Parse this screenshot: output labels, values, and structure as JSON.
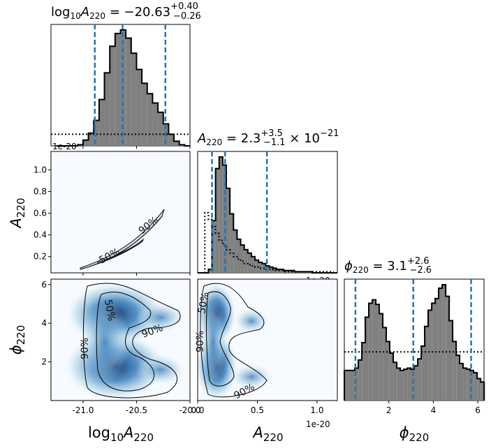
{
  "chart_data": [
    {
      "type": "histogram",
      "panel": "top-left",
      "title": "log10A220 = -20.63 (+0.40, -0.26)",
      "bins": [
        {
          "x": -21.25,
          "y": 0.0
        },
        {
          "x": -21.2,
          "y": 0.0
        },
        {
          "x": -21.15,
          "y": 0.0
        },
        {
          "x": -21.1,
          "y": 0.0
        },
        {
          "x": -21.05,
          "y": 0.01
        },
        {
          "x": -21.0,
          "y": 0.05
        },
        {
          "x": -20.95,
          "y": 0.11
        },
        {
          "x": -20.9,
          "y": 0.22
        },
        {
          "x": -20.85,
          "y": 0.4
        },
        {
          "x": -20.8,
          "y": 0.63
        },
        {
          "x": -20.75,
          "y": 0.86
        },
        {
          "x": -20.7,
          "y": 0.97
        },
        {
          "x": -20.65,
          "y": 1.0
        },
        {
          "x": -20.6,
          "y": 0.93
        },
        {
          "x": -20.55,
          "y": 0.8
        },
        {
          "x": -20.5,
          "y": 0.66
        },
        {
          "x": -20.45,
          "y": 0.54
        },
        {
          "x": -20.4,
          "y": 0.45
        },
        {
          "x": -20.35,
          "y": 0.37
        },
        {
          "x": -20.3,
          "y": 0.29
        },
        {
          "x": -20.25,
          "y": 0.19
        },
        {
          "x": -20.2,
          "y": 0.1
        },
        {
          "x": -20.15,
          "y": 0.04
        },
        {
          "x": -20.1,
          "y": 0.01
        },
        {
          "x": -20.05,
          "y": 0.0
        }
      ],
      "quantiles": [
        -20.89,
        -20.63,
        -20.23
      ],
      "prior_level": 0.1,
      "xlim": [
        -21.3,
        -20.0
      ],
      "offset_label": "1e-20"
    },
    {
      "type": "histogram",
      "panel": "middle",
      "title": "A220 = 2.3 (+3.5, -1.1) x 10^-21",
      "bins": [
        {
          "x": 0.0,
          "y": 0.0
        },
        {
          "x": 0.03,
          "y": 0.0
        },
        {
          "x": 0.06,
          "y": 0.0
        },
        {
          "x": 0.09,
          "y": 0.03
        },
        {
          "x": 0.12,
          "y": 0.45
        },
        {
          "x": 0.15,
          "y": 0.9
        },
        {
          "x": 0.18,
          "y": 1.0
        },
        {
          "x": 0.21,
          "y": 0.93
        },
        {
          "x": 0.24,
          "y": 0.73
        },
        {
          "x": 0.27,
          "y": 0.51
        },
        {
          "x": 0.3,
          "y": 0.37
        },
        {
          "x": 0.33,
          "y": 0.29
        },
        {
          "x": 0.36,
          "y": 0.24
        },
        {
          "x": 0.39,
          "y": 0.2
        },
        {
          "x": 0.42,
          "y": 0.17
        },
        {
          "x": 0.45,
          "y": 0.14
        },
        {
          "x": 0.48,
          "y": 0.11
        },
        {
          "x": 0.51,
          "y": 0.09
        },
        {
          "x": 0.54,
          "y": 0.08
        },
        {
          "x": 0.57,
          "y": 0.06
        },
        {
          "x": 0.6,
          "y": 0.05
        },
        {
          "x": 0.63,
          "y": 0.04
        },
        {
          "x": 0.66,
          "y": 0.03
        },
        {
          "x": 0.69,
          "y": 0.03
        },
        {
          "x": 0.72,
          "y": 0.02
        },
        {
          "x": 0.75,
          "y": 0.02
        },
        {
          "x": 0.78,
          "y": 0.02
        },
        {
          "x": 0.81,
          "y": 0.01
        },
        {
          "x": 0.84,
          "y": 0.01
        },
        {
          "x": 0.87,
          "y": 0.01
        },
        {
          "x": 0.9,
          "y": 0.01
        },
        {
          "x": 0.93,
          "y": 0.01
        },
        {
          "x": 0.96,
          "y": 0.0
        },
        {
          "x": 0.99,
          "y": 0.0
        },
        {
          "x": 1.02,
          "y": 0.0
        },
        {
          "x": 1.05,
          "y": 0.0
        },
        {
          "x": 1.08,
          "y": 0.0
        },
        {
          "x": 1.11,
          "y": 0.0
        },
        {
          "x": 1.14,
          "y": 0.0
        }
      ],
      "prior": [
        {
          "x": 0.0,
          "y": 0.0
        },
        {
          "x": 0.03,
          "y": 0.0
        },
        {
          "x": 0.06,
          "y": 0.52
        },
        {
          "x": 0.09,
          "y": 0.46
        },
        {
          "x": 0.12,
          "y": 0.4
        },
        {
          "x": 0.15,
          "y": 0.34
        },
        {
          "x": 0.18,
          "y": 0.28
        },
        {
          "x": 0.21,
          "y": 0.24
        },
        {
          "x": 0.24,
          "y": 0.2
        },
        {
          "x": 0.27,
          "y": 0.17
        },
        {
          "x": 0.3,
          "y": 0.14
        },
        {
          "x": 0.33,
          "y": 0.12
        },
        {
          "x": 0.36,
          "y": 0.1
        },
        {
          "x": 0.39,
          "y": 0.08
        },
        {
          "x": 0.42,
          "y": 0.07
        },
        {
          "x": 0.45,
          "y": 0.06
        },
        {
          "x": 0.48,
          "y": 0.05
        },
        {
          "x": 0.51,
          "y": 0.04
        },
        {
          "x": 0.54,
          "y": 0.04
        },
        {
          "x": 0.57,
          "y": 0.03
        },
        {
          "x": 0.6,
          "y": 0.03
        },
        {
          "x": 0.63,
          "y": 0.02
        },
        {
          "x": 0.66,
          "y": 0.02
        },
        {
          "x": 0.69,
          "y": 0.02
        },
        {
          "x": 0.72,
          "y": 0.01
        },
        {
          "x": 0.75,
          "y": 0.01
        },
        {
          "x": 0.78,
          "y": 0.01
        },
        {
          "x": 0.81,
          "y": 0.01
        },
        {
          "x": 0.84,
          "y": 0.01
        },
        {
          "x": 0.87,
          "y": 0.01
        },
        {
          "x": 0.9,
          "y": 0.01
        },
        {
          "x": 0.93,
          "y": 0.01
        },
        {
          "x": 0.96,
          "y": 0.01
        },
        {
          "x": 0.99,
          "y": 0.01
        },
        {
          "x": 1.02,
          "y": 0.01
        },
        {
          "x": 1.05,
          "y": 0.01
        },
        {
          "x": 1.08,
          "y": 0.01
        },
        {
          "x": 1.11,
          "y": 0.01
        },
        {
          "x": 1.14,
          "y": 0.01
        }
      ],
      "quantiles": [
        0.12,
        0.23,
        0.58
      ],
      "xlim": [
        0.0,
        1.17
      ],
      "offset_label": "1e-20"
    },
    {
      "type": "histogram",
      "panel": "bottom-right",
      "title": "phi220 = 3.1 (+2.6, -2.6)",
      "bins": [
        {
          "x": 0.0,
          "y": 0.26
        },
        {
          "x": 0.16,
          "y": 0.26
        },
        {
          "x": 0.31,
          "y": 0.26
        },
        {
          "x": 0.47,
          "y": 0.28
        },
        {
          "x": 0.63,
          "y": 0.35
        },
        {
          "x": 0.79,
          "y": 0.5
        },
        {
          "x": 0.94,
          "y": 0.72
        },
        {
          "x": 1.1,
          "y": 0.84
        },
        {
          "x": 1.26,
          "y": 0.87
        },
        {
          "x": 1.41,
          "y": 0.83
        },
        {
          "x": 1.57,
          "y": 0.75
        },
        {
          "x": 1.73,
          "y": 0.63
        },
        {
          "x": 1.88,
          "y": 0.51
        },
        {
          "x": 2.04,
          "y": 0.41
        },
        {
          "x": 2.2,
          "y": 0.33
        },
        {
          "x": 2.36,
          "y": 0.28
        },
        {
          "x": 2.51,
          "y": 0.26
        },
        {
          "x": 2.67,
          "y": 0.27
        },
        {
          "x": 2.83,
          "y": 0.28
        },
        {
          "x": 2.98,
          "y": 0.27
        },
        {
          "x": 3.14,
          "y": 0.3
        },
        {
          "x": 3.3,
          "y": 0.36
        },
        {
          "x": 3.46,
          "y": 0.47
        },
        {
          "x": 3.61,
          "y": 0.64
        },
        {
          "x": 3.77,
          "y": 0.78
        },
        {
          "x": 3.93,
          "y": 0.84
        },
        {
          "x": 4.08,
          "y": 0.88
        },
        {
          "x": 4.24,
          "y": 0.97
        },
        {
          "x": 4.4,
          "y": 1.0
        },
        {
          "x": 4.56,
          "y": 0.9
        },
        {
          "x": 4.71,
          "y": 0.69
        },
        {
          "x": 4.87,
          "y": 0.51
        },
        {
          "x": 5.03,
          "y": 0.39
        },
        {
          "x": 5.18,
          "y": 0.32
        },
        {
          "x": 5.34,
          "y": 0.28
        },
        {
          "x": 5.5,
          "y": 0.27
        },
        {
          "x": 5.65,
          "y": 0.26
        },
        {
          "x": 5.81,
          "y": 0.24
        },
        {
          "x": 5.97,
          "y": 0.19
        },
        {
          "x": 6.13,
          "y": 0.16
        }
      ],
      "prior_level": 0.42,
      "quantiles": [
        0.5,
        3.1,
        5.7
      ],
      "xlim": [
        0.0,
        6.28
      ]
    },
    {
      "type": "contour",
      "panel": "middle-left",
      "x": "log10A220",
      "y": "A220",
      "xlim": [
        -21.3,
        -20.0
      ],
      "ylim": [
        0.05,
        1.17
      ],
      "contour_labels": [
        "50%",
        "90%"
      ]
    },
    {
      "type": "heatmap",
      "panel": "bottom-left",
      "x": "log10A220",
      "y": "phi220",
      "xlim": [
        -21.3,
        -20.0
      ],
      "ylim": [
        0.0,
        6.28
      ],
      "contour_labels": [
        "50%",
        "90%",
        "90%"
      ]
    },
    {
      "type": "heatmap",
      "panel": "bottom-middle",
      "x": "A220",
      "y": "phi220",
      "xlim": [
        0.0,
        1.17
      ],
      "ylim": [
        0.0,
        6.28
      ],
      "contour_labels": [
        "50%",
        "90%",
        "90%"
      ]
    }
  ],
  "titles": {
    "t1": "log10A220 = -20.63 (+0.40 / -0.26)",
    "t2": "A220 = 2.3 (+3.5 / -1.1) x 10^-21",
    "t3": "phi220 = 3.1 (+2.6 / -2.6)"
  },
  "axis_labels": {
    "log10A220": "log10A220",
    "A220": "A220",
    "phi220": "phi220"
  },
  "offset_labels": {
    "top_left": "1e-20",
    "middle": "1e-20",
    "bottom_middle": "1e-20"
  },
  "ticks": {
    "log10A": [
      "-21.0",
      "-20.5",
      "-20.0"
    ],
    "A220_y": [
      "0.2",
      "0.4",
      "0.6",
      "0.8",
      "1.0"
    ],
    "A220_x": [
      "0.0",
      "0.5",
      "1.0"
    ],
    "phi_y": [
      "2",
      "4",
      "6"
    ],
    "phi_x": [
      "2",
      "4",
      "6"
    ]
  },
  "contour_text": {
    "c50": "50%",
    "c90": "90%"
  },
  "colors": {
    "hist_fill": "#808080",
    "quantile_line": "#1f77b4",
    "density_dark": "#08306b",
    "density_light": "#f7fbff"
  }
}
